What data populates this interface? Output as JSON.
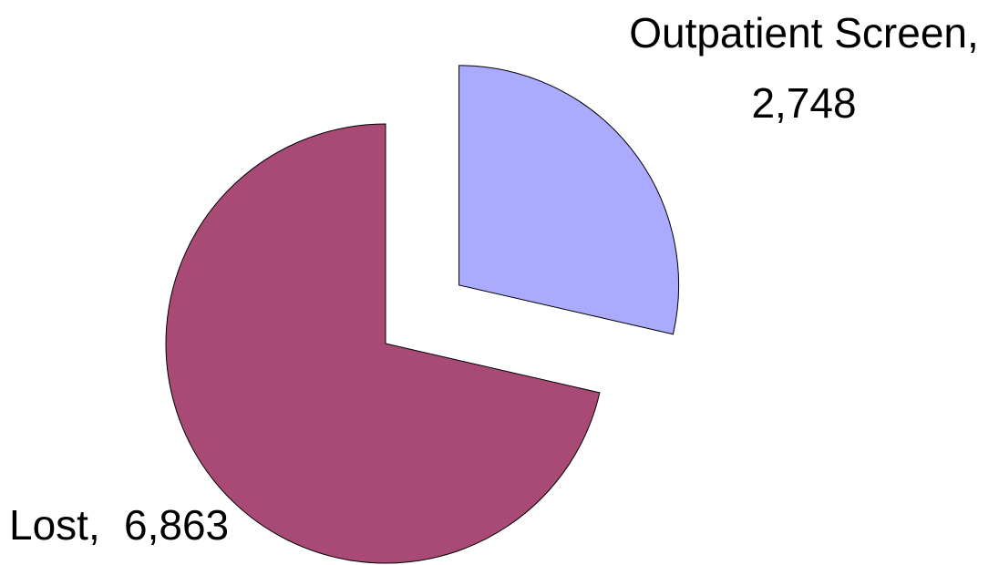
{
  "chart_data": {
    "type": "pie",
    "categories": [
      "Outpatient Screen,",
      "Lost,"
    ],
    "values": [
      2748,
      6863
    ],
    "value_labels": [
      "2,748",
      "6,863"
    ],
    "colors": [
      "#aaaaff",
      "#a94a76"
    ],
    "exploded": [
      0
    ]
  }
}
